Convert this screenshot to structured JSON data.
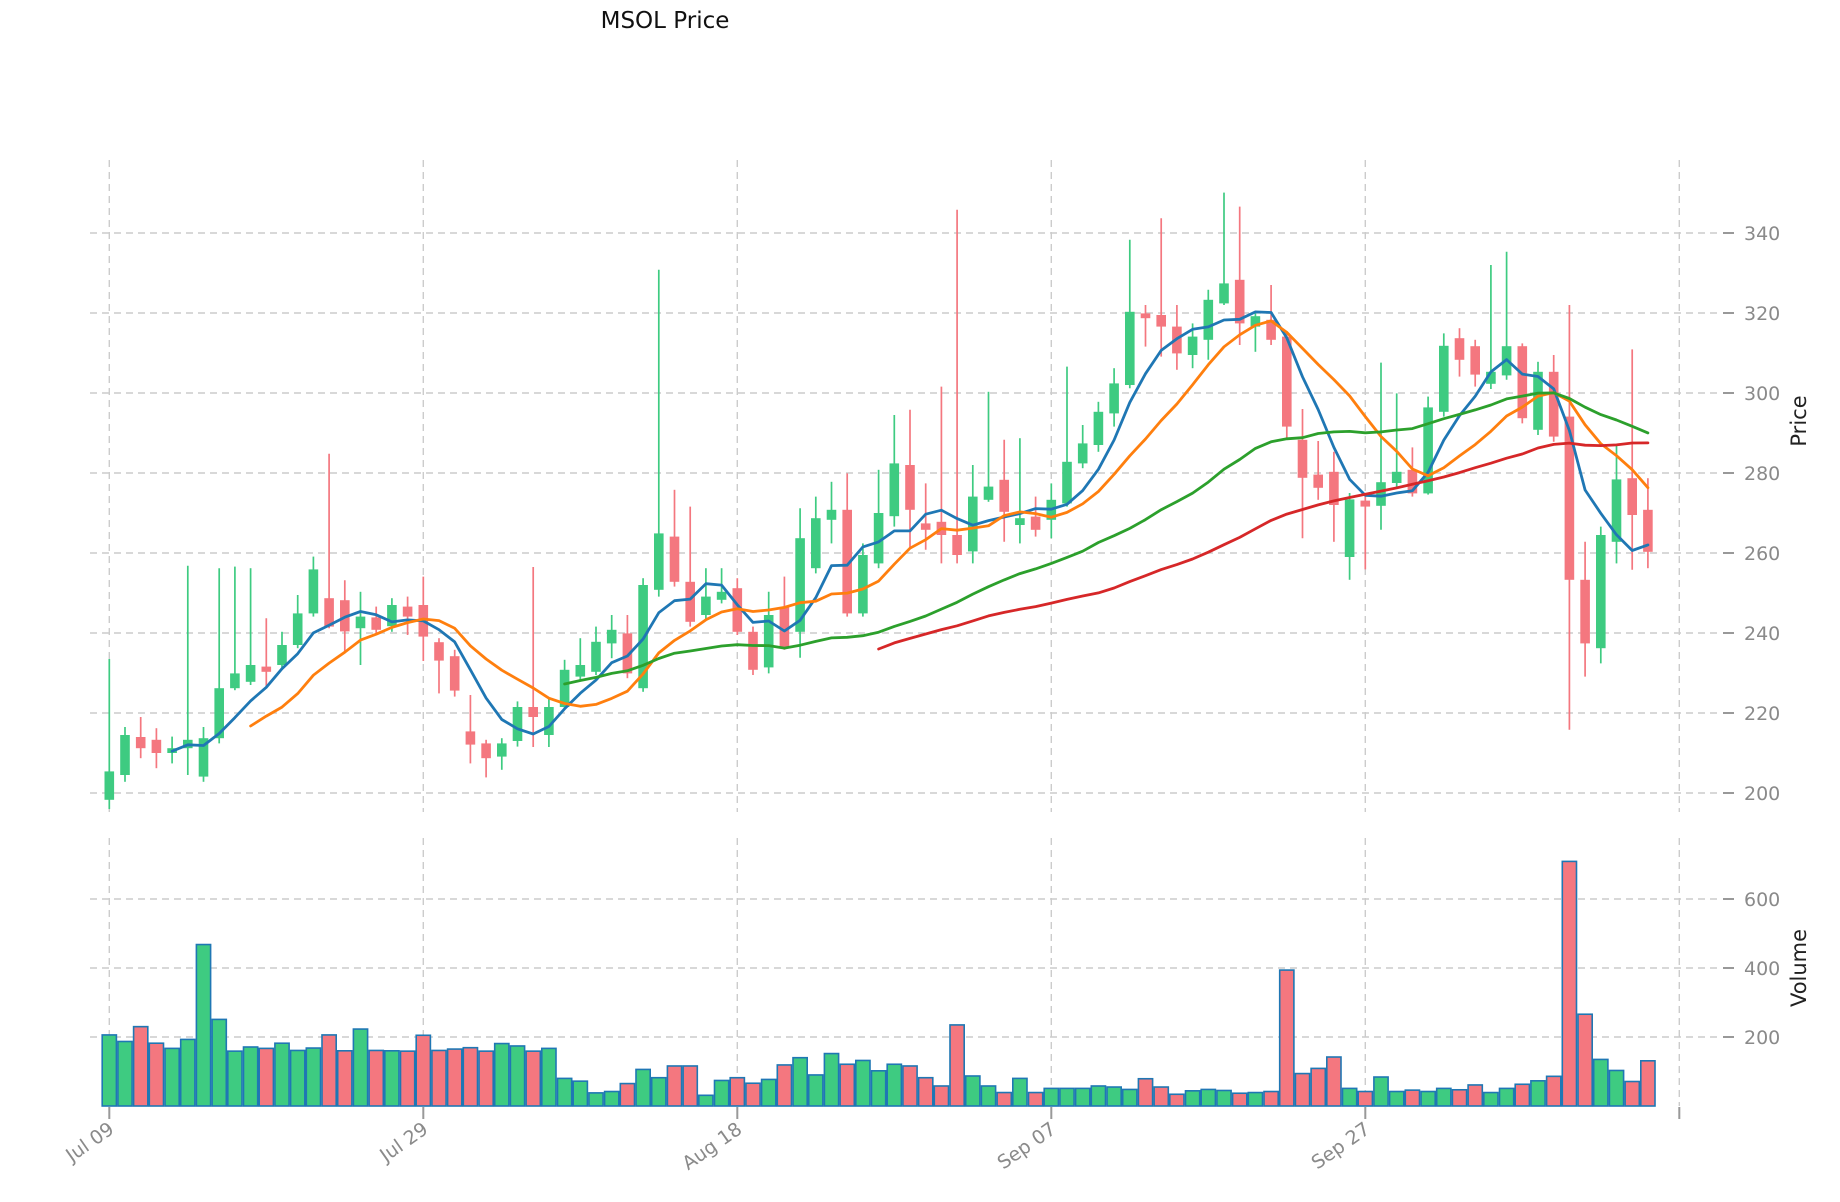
{
  "title": "MSOL Price",
  "price_axis": {
    "label": "Price",
    "tick_values": [
      340,
      320,
      300,
      280,
      260,
      240,
      220,
      200
    ]
  },
  "volume_axis": {
    "label": "Volume",
    "tick_values": [
      600,
      400,
      200
    ]
  },
  "x_axis": {
    "ticks": [
      {
        "i": 0,
        "label": "Jul 09"
      },
      {
        "i": 20,
        "label": "Jul 29"
      },
      {
        "i": 40,
        "label": "Aug 18"
      },
      {
        "i": 60,
        "label": "Sep 07"
      },
      {
        "i": 80,
        "label": "Sep 27"
      },
      {
        "i": 100,
        "label": ""
      }
    ]
  },
  "colors": {
    "up": "#3ECB81",
    "down": "#F4777F",
    "volume_edge": "#1f77b4",
    "grid": "#cccccc",
    "tick_mark": "#999999",
    "tick_text": "#8a8a8a",
    "title_text": "#111111"
  },
  "chart_data": {
    "type": "candlestick",
    "title": "MSOL Price",
    "ylabel_price": "Price",
    "ylabel_volume": "Volume",
    "price_ylim": [
      195,
      358
    ],
    "volume_ylim": [
      0,
      777
    ],
    "grid": "dashed",
    "legend_position": "none",
    "moving_averages": [
      {
        "period": 5,
        "color": "#1f77b4"
      },
      {
        "period": 10,
        "color": "#ff7f0e"
      },
      {
        "period": 30,
        "color": "#2ca02c"
      },
      {
        "period": 50,
        "color": "#d62728"
      }
    ],
    "candles_format": [
      "open",
      "high",
      "low",
      "close",
      "volume"
    ],
    "candles": [
      [
        198.3,
        233.5,
        196.0,
        205.4,
        206
      ],
      [
        204.5,
        216.5,
        202.8,
        214.5,
        187
      ],
      [
        214.0,
        219.0,
        208.7,
        211.2,
        230
      ],
      [
        213.3,
        216.2,
        206.2,
        210.0,
        182
      ],
      [
        210.0,
        214.1,
        207.4,
        211.2,
        167
      ],
      [
        211.2,
        256.8,
        204.5,
        213.3,
        193
      ],
      [
        204.1,
        216.5,
        202.8,
        213.7,
        468
      ],
      [
        213.7,
        256.2,
        212.4,
        226.2,
        251
      ],
      [
        226.2,
        256.6,
        225.7,
        229.9,
        159
      ],
      [
        227.8,
        256.2,
        227.0,
        232.0,
        171
      ],
      [
        231.6,
        243.7,
        226.6,
        230.3,
        167
      ],
      [
        232.0,
        240.3,
        230.8,
        237.0,
        182
      ],
      [
        237.0,
        249.5,
        236.2,
        244.9,
        161
      ],
      [
        244.9,
        259.1,
        244.1,
        255.9,
        168
      ],
      [
        248.7,
        284.8,
        241.2,
        241.6,
        206
      ],
      [
        248.2,
        253.2,
        234.9,
        240.4,
        160
      ],
      [
        241.2,
        250.3,
        232.0,
        244.1,
        223
      ],
      [
        243.9,
        246.6,
        239.9,
        240.8,
        161
      ],
      [
        241.7,
        248.7,
        240.3,
        247.0,
        160
      ],
      [
        246.6,
        249.1,
        239.5,
        244.1,
        159
      ],
      [
        247.0,
        254.1,
        233.0,
        239.1,
        205
      ],
      [
        237.7,
        238.7,
        224.9,
        233.1,
        161
      ],
      [
        234.2,
        235.8,
        224.1,
        225.6,
        165
      ],
      [
        215.4,
        224.5,
        207.4,
        212.1,
        169
      ],
      [
        212.4,
        213.3,
        203.9,
        208.7,
        159
      ],
      [
        209.1,
        213.7,
        205.8,
        212.4,
        181
      ],
      [
        213.0,
        222.9,
        211.6,
        221.5,
        174
      ],
      [
        221.5,
        256.5,
        211.5,
        219.0,
        159
      ],
      [
        214.5,
        224.0,
        211.5,
        221.5,
        167
      ],
      [
        221.5,
        233.3,
        220.8,
        230.8,
        80
      ],
      [
        229.1,
        238.7,
        228.3,
        232.0,
        72
      ],
      [
        230.3,
        241.6,
        229.5,
        237.8,
        38
      ],
      [
        237.4,
        244.5,
        233.7,
        240.8,
        42
      ],
      [
        239.9,
        244.5,
        228.7,
        229.9,
        65
      ],
      [
        226.2,
        253.7,
        225.3,
        252.0,
        106
      ],
      [
        250.8,
        330.8,
        249.1,
        264.9,
        82
      ],
      [
        264.1,
        275.8,
        251.6,
        252.8,
        116
      ],
      [
        252.8,
        271.6,
        241.6,
        242.8,
        116
      ],
      [
        244.5,
        256.2,
        243.3,
        249.1,
        31
      ],
      [
        248.3,
        256.2,
        247.4,
        250.3,
        74
      ],
      [
        251.2,
        253.7,
        239.5,
        240.3,
        82
      ],
      [
        240.3,
        241.6,
        229.5,
        230.8,
        66
      ],
      [
        231.4,
        250.3,
        229.9,
        244.5,
        77
      ],
      [
        246.4,
        254.1,
        235.8,
        236.6,
        119
      ],
      [
        240.3,
        271.2,
        233.8,
        263.7,
        140
      ],
      [
        256.2,
        274.1,
        254.9,
        268.7,
        90
      ],
      [
        268.3,
        277.8,
        262.4,
        270.8,
        152
      ],
      [
        270.8,
        279.9,
        244.1,
        244.9,
        121
      ],
      [
        244.9,
        262.4,
        244.1,
        259.5,
        132
      ],
      [
        257.4,
        280.8,
        256.2,
        270.0,
        102
      ],
      [
        269.2,
        294.5,
        266.6,
        282.4,
        121
      ],
      [
        282.0,
        295.8,
        261.2,
        270.8,
        116
      ],
      [
        267.4,
        277.4,
        260.8,
        265.8,
        82
      ],
      [
        267.8,
        301.6,
        257.4,
        264.5,
        58
      ],
      [
        264.5,
        345.8,
        257.4,
        259.5,
        235
      ],
      [
        260.4,
        282.0,
        257.4,
        274.1,
        87
      ],
      [
        273.3,
        300.3,
        272.8,
        276.6,
        58
      ],
      [
        278.3,
        288.3,
        262.8,
        270.3,
        39
      ],
      [
        267.0,
        288.7,
        262.4,
        268.7,
        80
      ],
      [
        269.1,
        274.1,
        264.1,
        265.8,
        39
      ],
      [
        268.3,
        277.4,
        263.7,
        273.3,
        51
      ],
      [
        272.4,
        306.6,
        271.6,
        282.8,
        51
      ],
      [
        282.4,
        292.0,
        281.2,
        287.4,
        51
      ],
      [
        287.0,
        297.8,
        285.3,
        295.3,
        58
      ],
      [
        294.9,
        306.2,
        291.6,
        302.4,
        55
      ],
      [
        302.0,
        338.3,
        301.2,
        320.3,
        48
      ],
      [
        319.9,
        322.0,
        311.6,
        318.7,
        79
      ],
      [
        319.5,
        343.7,
        309.1,
        316.6,
        55
      ],
      [
        316.6,
        322.0,
        305.8,
        309.9,
        34
      ],
      [
        309.5,
        317.4,
        306.2,
        314.1,
        44
      ],
      [
        313.3,
        325.8,
        308.3,
        323.3,
        48
      ],
      [
        322.4,
        350.1,
        322.0,
        327.4,
        45
      ],
      [
        328.3,
        346.6,
        312.0,
        317.4,
        37
      ],
      [
        316.6,
        319.9,
        310.3,
        319.2,
        39
      ],
      [
        318.3,
        327.0,
        312.0,
        313.3,
        42
      ],
      [
        314.1,
        315.5,
        288.3,
        291.6,
        394
      ],
      [
        288.3,
        296.0,
        263.7,
        278.8,
        94
      ],
      [
        279.6,
        288.0,
        273.3,
        276.3,
        109
      ],
      [
        280.3,
        285.3,
        262.8,
        272.0,
        142
      ],
      [
        259.0,
        275.0,
        253.3,
        273.4,
        51
      ],
      [
        273.1,
        274.5,
        255.9,
        271.6,
        42
      ],
      [
        271.8,
        307.6,
        265.8,
        277.7,
        84
      ],
      [
        277.5,
        299.9,
        276.2,
        280.3,
        42
      ],
      [
        280.8,
        286.4,
        274.1,
        274.9,
        46
      ],
      [
        274.9,
        299.1,
        274.6,
        296.4,
        42
      ],
      [
        295.3,
        314.9,
        294.1,
        311.8,
        51
      ],
      [
        313.7,
        316.2,
        304.1,
        308.3,
        47
      ],
      [
        311.7,
        313.3,
        301.6,
        304.6,
        61
      ],
      [
        302.3,
        332.0,
        301.0,
        305.3,
        39
      ],
      [
        304.4,
        335.3,
        303.3,
        311.7,
        51
      ],
      [
        311.7,
        312.4,
        292.4,
        293.7,
        63
      ],
      [
        290.8,
        307.8,
        289.5,
        305.3,
        73
      ],
      [
        305.3,
        309.5,
        287.8,
        289.1,
        86
      ],
      [
        294.1,
        322.0,
        215.8,
        253.3,
        709
      ],
      [
        253.3,
        262.8,
        229.1,
        237.4,
        266
      ],
      [
        236.2,
        266.6,
        232.4,
        264.5,
        135
      ],
      [
        262.8,
        286.8,
        257.4,
        278.4,
        103
      ],
      [
        278.7,
        310.9,
        255.8,
        269.5,
        71
      ],
      [
        270.8,
        278.7,
        256.2,
        260.3,
        131
      ]
    ]
  }
}
